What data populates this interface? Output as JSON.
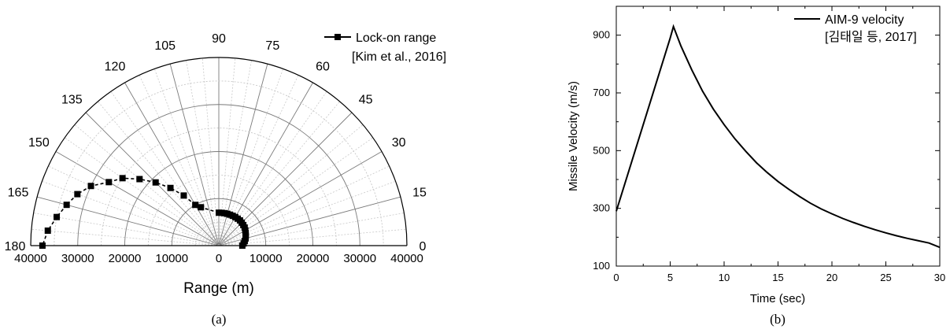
{
  "chart_data": [
    {
      "type": "scatter",
      "subtype": "polar-half",
      "caption": "(a)",
      "xlabel": "Range (m)",
      "x_ticks": [
        "40000",
        "30000",
        "20000",
        "10000",
        "0",
        "10000",
        "20000",
        "30000",
        "40000"
      ],
      "angle_ticks": [
        "0",
        "15",
        "30",
        "45",
        "60",
        "75",
        "90",
        "105",
        "120",
        "135",
        "150",
        "165",
        "180"
      ],
      "r_range": [
        0,
        40000
      ],
      "angle_range": [
        0,
        180
      ],
      "grid": true,
      "legend_position": "top-right",
      "series": [
        {
          "name": "Lock-on range",
          "source": "[Kim et al., 2016]",
          "marker": "square",
          "line": "dashed",
          "color": "#000000",
          "points": [
            {
              "angle": 0,
              "r": 5000
            },
            {
              "angle": 5,
              "r": 5300
            },
            {
              "angle": 10,
              "r": 5600
            },
            {
              "angle": 15,
              "r": 5900
            },
            {
              "angle": 20,
              "r": 6100
            },
            {
              "angle": 25,
              "r": 6300
            },
            {
              "angle": 30,
              "r": 6500
            },
            {
              "angle": 35,
              "r": 6700
            },
            {
              "angle": 40,
              "r": 6800
            },
            {
              "angle": 45,
              "r": 6900
            },
            {
              "angle": 50,
              "r": 7000
            },
            {
              "angle": 55,
              "r": 7000
            },
            {
              "angle": 60,
              "r": 7000
            },
            {
              "angle": 65,
              "r": 7000
            },
            {
              "angle": 70,
              "r": 7000
            },
            {
              "angle": 75,
              "r": 7000
            },
            {
              "angle": 80,
              "r": 7000
            },
            {
              "angle": 85,
              "r": 7000
            },
            {
              "angle": 90,
              "r": 7000
            },
            {
              "angle": 115,
              "r": 9000
            },
            {
              "angle": 120,
              "r": 10000
            },
            {
              "angle": 125,
              "r": 13000
            },
            {
              "angle": 130,
              "r": 16000
            },
            {
              "angle": 135,
              "r": 19000
            },
            {
              "angle": 140,
              "r": 22000
            },
            {
              "angle": 145,
              "r": 25000
            },
            {
              "angle": 150,
              "r": 27000
            },
            {
              "angle": 155,
              "r": 30000
            },
            {
              "angle": 160,
              "r": 32000
            },
            {
              "angle": 165,
              "r": 33500
            },
            {
              "angle": 170,
              "r": 35000
            },
            {
              "angle": 175,
              "r": 36500
            },
            {
              "angle": 180,
              "r": 37500
            }
          ]
        }
      ]
    },
    {
      "type": "line",
      "caption": "(b)",
      "xlabel": "Time (sec)",
      "ylabel": "Missile Velocity (m/s)",
      "xlim": [
        0,
        30
      ],
      "ylim": [
        100,
        1000
      ],
      "x_ticks": [
        "0",
        "5",
        "10",
        "15",
        "20",
        "25",
        "30"
      ],
      "y_ticks": [
        "100",
        "300",
        "500",
        "700",
        "900"
      ],
      "legend_position": "top-right",
      "series": [
        {
          "name": "AIM-9 velocity",
          "source": "[김태일 등, 2017]",
          "color": "#000000",
          "x": [
            0,
            0.5,
            1,
            1.5,
            2,
            2.5,
            3,
            3.5,
            4,
            4.5,
            5,
            5.3,
            6,
            7,
            8,
            9,
            10,
            11,
            12,
            13,
            14,
            15,
            16,
            17,
            18,
            19,
            20,
            21,
            22,
            23,
            24,
            25,
            26,
            27,
            28,
            29,
            30
          ],
          "y": [
            290,
            350,
            410,
            470,
            530,
            590,
            650,
            710,
            770,
            830,
            890,
            930,
            862,
            780,
            706,
            644,
            590,
            541,
            498,
            458,
            424,
            393,
            366,
            341,
            318,
            298,
            281,
            265,
            251,
            238,
            226,
            215,
            205,
            196,
            188,
            180,
            165
          ]
        }
      ]
    }
  ]
}
